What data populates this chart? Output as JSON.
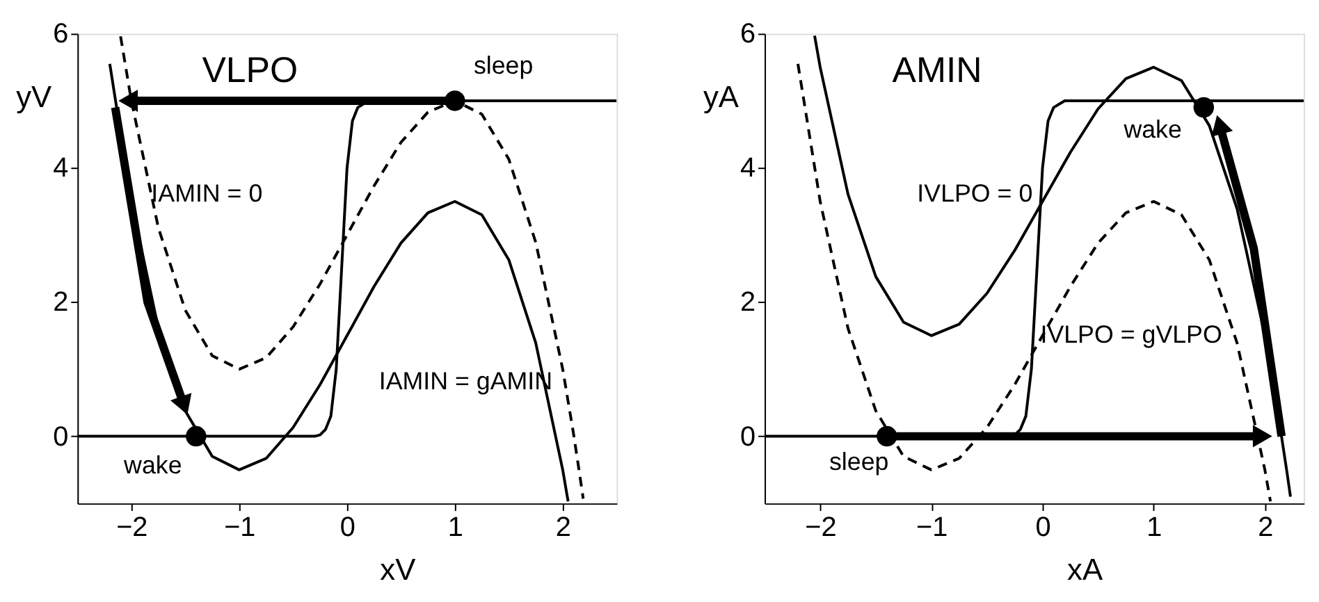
{
  "chart_data": [
    {
      "type": "line",
      "title": "VLPO",
      "xlabel": "xV",
      "ylabel": "yV",
      "xlim": [
        -2.5,
        2.5
      ],
      "ylim": [
        -1,
        6
      ],
      "xticks": [
        -2,
        -1,
        0,
        1,
        2
      ],
      "yticks": [
        0,
        2,
        4,
        6
      ],
      "grid": false,
      "series": [
        {
          "color": "#000000",
          "line_style": "solid",
          "x": [
            -2.2,
            -2,
            -1.75,
            -1.5,
            -1.25,
            -1,
            -0.75,
            -0.5,
            -0.25,
            0,
            0.25,
            0.5,
            0.75,
            1,
            1.25,
            1.5,
            1.75,
            2,
            2.05
          ],
          "values": [
            5.55,
            3.5,
            1.61,
            0.38,
            -0.3,
            -0.5,
            -0.33,
            0.13,
            0.77,
            1.5,
            2.23,
            2.88,
            3.33,
            3.5,
            3.3,
            2.63,
            1.39,
            -0.5,
            -0.97
          ]
        },
        {
          "color": "#000000",
          "line_style": "dashed",
          "x": [
            -2.1,
            -2,
            -1.75,
            -1.5,
            -1.25,
            -1,
            -0.75,
            -0.5,
            -0.25,
            0,
            0.25,
            0.5,
            0.75,
            1,
            1.25,
            1.5,
            1.75,
            2,
            2.1,
            2.15,
            2.19
          ],
          "values": [
            5.96,
            5,
            3.11,
            1.88,
            1.2,
            1,
            1.17,
            1.63,
            2.27,
            3,
            3.73,
            4.38,
            4.83,
            5,
            4.8,
            4.13,
            2.89,
            1,
            0.04,
            -0.49,
            -0.93
          ]
        },
        {
          "color": "#000000",
          "line_style": "solid",
          "x": [
            -2.5,
            -0.3,
            -0.25,
            -0.2,
            -0.15,
            -0.1,
            -0.05,
            0,
            0.05,
            0.1,
            0.2,
            2.5
          ],
          "values": [
            0,
            0,
            0.02,
            0.1,
            0.3,
            1,
            2.5,
            4,
            4.7,
            4.9,
            5,
            5
          ]
        },
        {
          "color": "#000000",
          "line_style": "solid",
          "x": [
            1,
            -2.0
          ],
          "values": [
            5,
            5
          ]
        },
        {
          "color": "#000000",
          "line_style": "solid",
          "x": [
            -2.15,
            -1.85,
            -1.52
          ],
          "values": [
            4.9,
            2.0,
            0.5
          ]
        },
        {
          "type": "scatter",
          "color": "#000000",
          "marker": "circle",
          "x": [
            1,
            -1.4
          ],
          "values": [
            5,
            0
          ]
        }
      ],
      "annotations": [
        "sleep",
        "wake",
        "IAMIN = 0",
        "IAMIN = gAMIN"
      ]
    },
    {
      "type": "line",
      "title": "AMIN",
      "xlabel": "xA",
      "ylabel": "yA",
      "xlim": [
        -2.5,
        2.35
      ],
      "ylim": [
        -1,
        6
      ],
      "xticks": [
        -2,
        -1,
        0,
        1,
        2
      ],
      "yticks": [
        0,
        2,
        4,
        6
      ],
      "grid": false,
      "series": [
        {
          "color": "#000000",
          "line_style": "solid",
          "x": [
            -2.05,
            -2,
            -1.75,
            -1.5,
            -1.25,
            -1,
            -0.75,
            -0.5,
            -0.25,
            0,
            0.25,
            0.5,
            0.75,
            1,
            1.25,
            1.5,
            1.75,
            2,
            2.1,
            2.2,
            2.23
          ],
          "values": [
            5.97,
            5.5,
            3.61,
            2.38,
            1.7,
            1.5,
            1.67,
            2.13,
            2.77,
            3.5,
            4.23,
            4.88,
            5.33,
            5.5,
            5.3,
            4.63,
            3.39,
            1.5,
            0.54,
            -0.55,
            -0.9
          ]
        },
        {
          "color": "#000000",
          "line_style": "dashed",
          "x": [
            -2.2,
            -2,
            -1.75,
            -1.5,
            -1.25,
            -1,
            -0.75,
            -0.5,
            -0.25,
            0,
            0.25,
            0.5,
            0.75,
            1,
            1.25,
            1.5,
            1.75,
            2,
            2.05
          ],
          "values": [
            5.55,
            3.5,
            1.61,
            0.38,
            -0.3,
            -0.5,
            -0.33,
            0.13,
            0.77,
            1.5,
            2.23,
            2.88,
            3.33,
            3.5,
            3.3,
            2.63,
            1.39,
            -0.5,
            -0.97
          ]
        },
        {
          "color": "#000000",
          "line_style": "solid",
          "x": [
            -2.5,
            -0.3,
            -0.25,
            -0.2,
            -0.15,
            -0.1,
            -0.05,
            0,
            0.05,
            0.1,
            0.2,
            2.35
          ],
          "values": [
            0,
            0,
            0.02,
            0.1,
            0.3,
            1,
            2.5,
            4,
            4.7,
            4.9,
            5,
            5
          ]
        },
        {
          "color": "#000000",
          "line_style": "solid",
          "x": [
            -1.4,
            1.95
          ],
          "values": [
            0,
            0
          ]
        },
        {
          "color": "#000000",
          "line_style": "solid",
          "x": [
            2.15,
            1.9,
            1.6
          ],
          "values": [
            0,
            2.8,
            4.6
          ]
        },
        {
          "type": "scatter",
          "color": "#000000",
          "marker": "circle",
          "x": [
            -1.4,
            1.45
          ],
          "values": [
            0,
            4.9
          ]
        }
      ],
      "annotations": [
        "sleep",
        "wake",
        "IVLPO = 0",
        "IVLPO = gVLPO"
      ]
    }
  ]
}
